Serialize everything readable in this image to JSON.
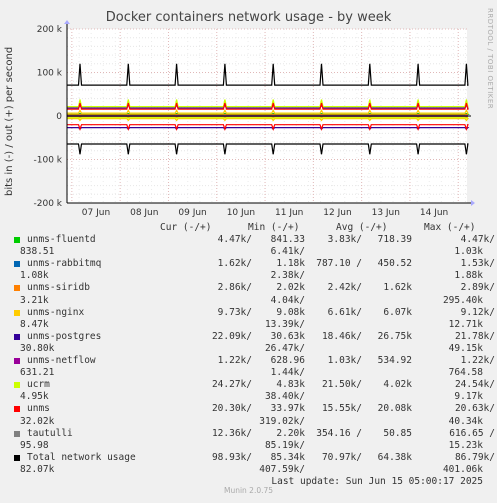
{
  "chart_data": {
    "type": "line",
    "title": "Docker containers network usage - by week",
    "ylabel": "bits in (-) / out (+) per second",
    "ylim": [
      -200000,
      200000
    ],
    "yticks": [
      {
        "value": 200000,
        "label": "200 k"
      },
      {
        "value": 100000,
        "label": "100 k"
      },
      {
        "value": 0,
        "label": "0"
      },
      {
        "value": -100000,
        "label": "-100 k"
      },
      {
        "value": -200000,
        "label": "-200 k"
      }
    ],
    "xticks": [
      "07 Jun",
      "08 Jun",
      "09 Jun",
      "10 Jun",
      "11 Jun",
      "12 Jun",
      "13 Jun",
      "14 Jun"
    ],
    "grid": true,
    "legend_placement": "bottom",
    "series": [
      {
        "name": "unms-fluentd",
        "color": "#00cc00",
        "out": 3830,
        "in": -718.39,
        "spike_out": 6000,
        "spike_in": -1000
      },
      {
        "name": "unms-rabbitmq",
        "color": "#0066b3",
        "out": 787.1,
        "in": -450.52,
        "spike_out": 2000,
        "spike_in": -1000
      },
      {
        "name": "unms-siridb",
        "color": "#ff8000",
        "out": 2420,
        "in": -1620,
        "spike_out": 4000,
        "spike_in": -3000
      },
      {
        "name": "unms-nginx",
        "color": "#ffcc00",
        "out": 6610,
        "in": -6070,
        "spike_out": 13000,
        "spike_in": -10000
      },
      {
        "name": "unms-postgres",
        "color": "#330099",
        "out": 18460,
        "in": -26750,
        "spike_out": 26000,
        "spike_in": -30000
      },
      {
        "name": "unms-netflow",
        "color": "#990099",
        "out": 1030,
        "in": -534.92,
        "spike_out": 1400,
        "spike_in": -700
      },
      {
        "name": "ucrm",
        "color": "#ccff00",
        "out": 21500,
        "in": -4020,
        "spike_out": 38000,
        "spike_in": -5000
      },
      {
        "name": "unms",
        "color": "#ff0000",
        "out": 15550,
        "in": -20080,
        "spike_out": 30000,
        "spike_in": -30000
      },
      {
        "name": "tautulli",
        "color": "#808080",
        "out": 354.16,
        "in": -50.85,
        "spike_out": 1000,
        "spike_in": -100
      },
      {
        "name": "Total network usage",
        "color": "#000000",
        "out": 70970,
        "in": -64380,
        "spike_out": 120000,
        "spike_in": -88000
      }
    ]
  },
  "legend": {
    "headers": {
      "cur": "Cur (-/+)",
      "min": "Min (-/+)",
      "avg": "Avg (-/+)",
      "max": "Max (-/+)"
    },
    "rows": [
      {
        "name": "unms-fluentd",
        "cur_out": "4.47k/",
        "min_out": "841.33",
        "avg_out": "3.83k/",
        "avg_in": "718.39",
        "max_out": "4.47k/",
        "cur_in": "838.51",
        "min_in": "6.41k/",
        "max_in": "1.03k"
      },
      {
        "name": "unms-rabbitmq",
        "cur_out": "1.62k/",
        "min_out": "1.18k",
        "avg_out": "787.10 /",
        "avg_in": "450.52",
        "max_out": "1.53k/",
        "cur_in": "1.08k",
        "min_in": "2.38k/",
        "max_in": "1.88k"
      },
      {
        "name": "unms-siridb",
        "cur_out": "2.86k/",
        "min_out": "2.02k",
        "avg_out": "2.42k/",
        "avg_in": "1.62k",
        "max_out": "2.89k/",
        "cur_in": "3.21k",
        "min_in": "4.04k/",
        "max_in": "295.40k"
      },
      {
        "name": "unms-nginx",
        "cur_out": "9.73k/",
        "min_out": "9.08k",
        "avg_out": "6.61k/",
        "avg_in": "6.07k",
        "max_out": "9.12k/",
        "cur_in": "8.47k",
        "min_in": "13.39k/",
        "max_in": "12.71k"
      },
      {
        "name": "unms-postgres",
        "cur_out": "22.09k/",
        "min_out": "30.63k",
        "avg_out": "18.46k/",
        "avg_in": "26.75k",
        "max_out": "21.78k/",
        "cur_in": "30.80k",
        "min_in": "26.47k/",
        "max_in": "49.15k"
      },
      {
        "name": "unms-netflow",
        "cur_out": "1.22k/",
        "min_out": "628.96",
        "avg_out": "1.03k/",
        "avg_in": "534.92",
        "max_out": "1.22k/",
        "cur_in": "631.21",
        "min_in": "1.44k/",
        "max_in": "764.58"
      },
      {
        "name": "ucrm",
        "cur_out": "24.27k/",
        "min_out": "4.83k",
        "avg_out": "21.50k/",
        "avg_in": "4.02k",
        "max_out": "24.54k/",
        "cur_in": "4.95k",
        "min_in": "38.40k/",
        "max_in": "9.17k"
      },
      {
        "name": "unms",
        "cur_out": "20.30k/",
        "min_out": "33.97k",
        "avg_out": "15.55k/",
        "avg_in": "20.08k",
        "max_out": "20.63k/",
        "cur_in": "32.02k",
        "min_in": "319.02k/",
        "max_in": "40.34k"
      },
      {
        "name": "tautulli",
        "cur_out": "12.36k/",
        "min_out": "2.20k",
        "avg_out": "354.16 /",
        "avg_in": "50.85",
        "max_out": "616.65 /",
        "cur_in": "95.98",
        "min_in": "85.19k/",
        "max_in": "15.23k"
      },
      {
        "name": "Total network usage",
        "cur_out": "98.93k/",
        "min_out": "85.34k",
        "avg_out": "70.97k/",
        "avg_in": "64.38k",
        "max_out": "86.79k/",
        "cur_in": "82.07k",
        "min_in": "407.59k/",
        "max_in": "401.06k"
      }
    ],
    "last_update": "Last update: Sun Jun 15 05:00:17 2025"
  },
  "side_text": "RRDTOOL / TOBI OETIKER",
  "footer": "Munin 2.0.75"
}
